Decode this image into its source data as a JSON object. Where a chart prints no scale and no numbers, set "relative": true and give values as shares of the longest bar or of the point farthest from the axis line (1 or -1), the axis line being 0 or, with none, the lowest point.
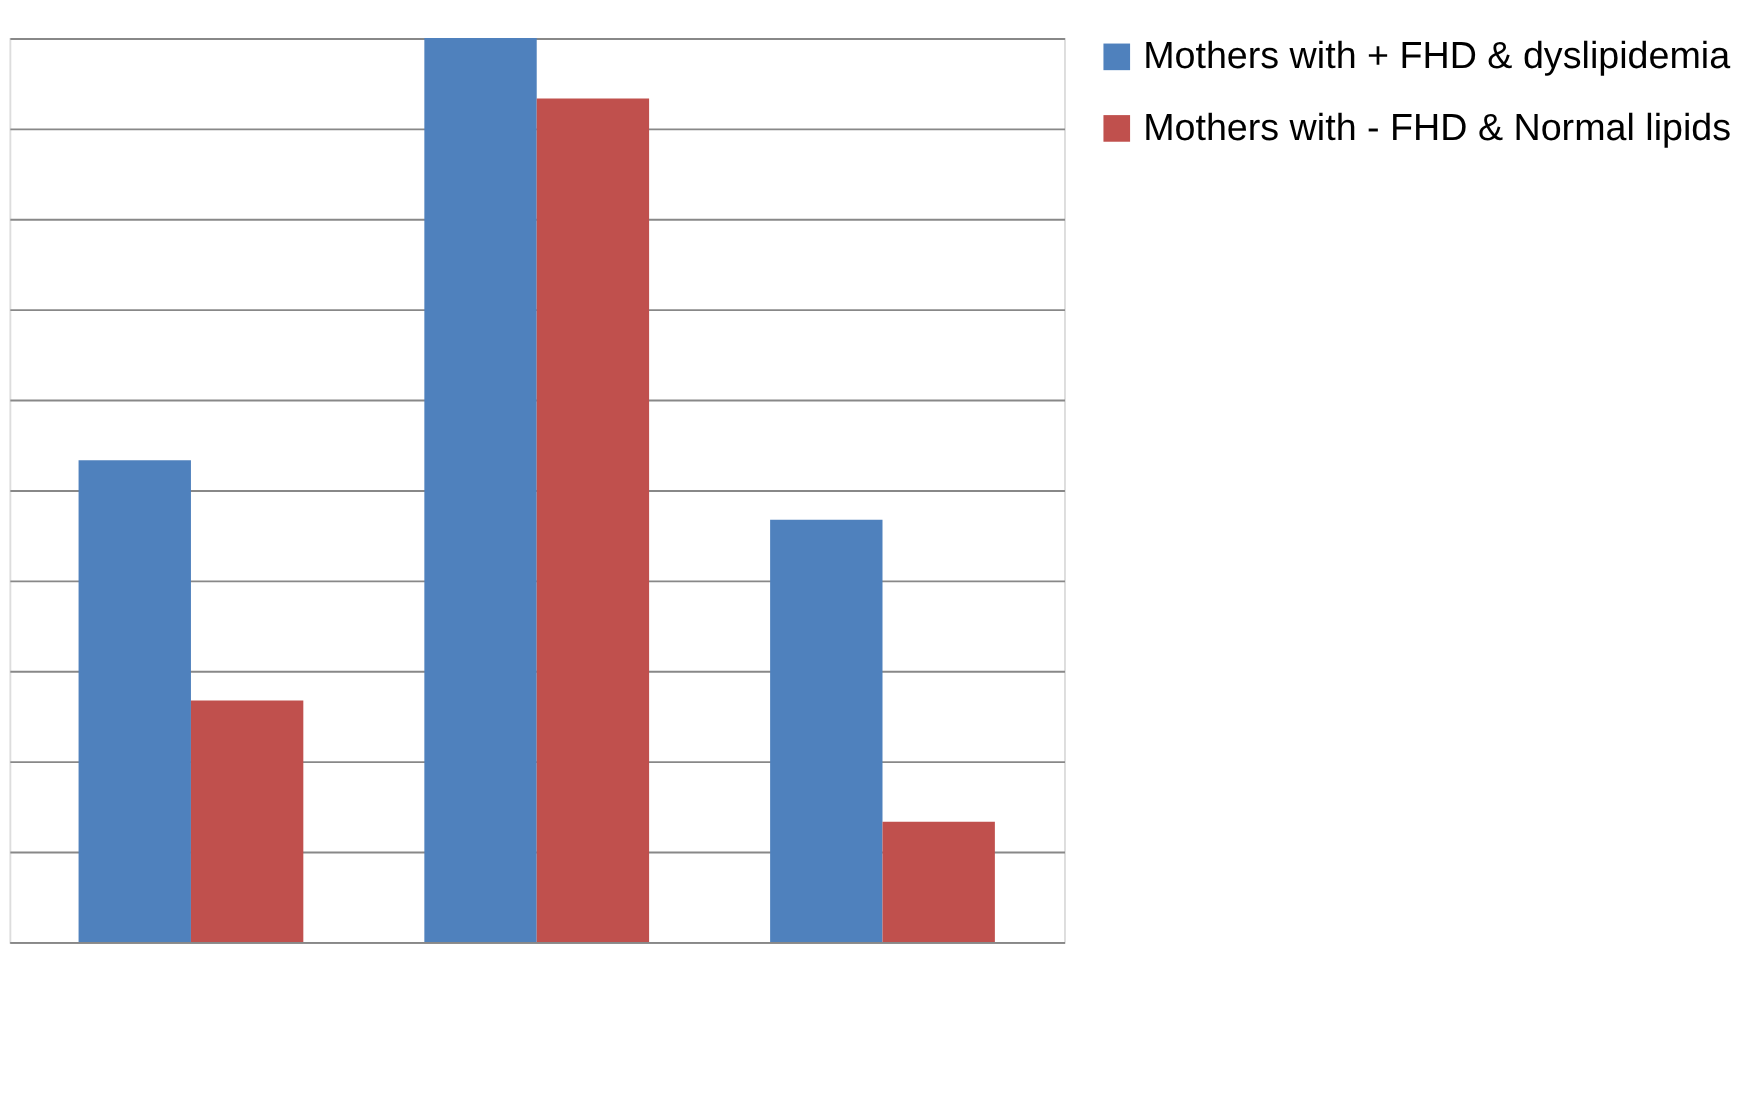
{
  "chart_data": {
    "type": "bar",
    "relative": true,
    "categories": [
      null,
      null,
      null
    ],
    "series": [
      {
        "name": "Mothers with + FHD & dyslipidemia",
        "color": "#4f81bd",
        "values": [
          0.533,
          1,
          0.467
        ]
      },
      {
        "name": "Mothers with - FHD & Normal lipids",
        "color": "#c0504d",
        "values": [
          0.267,
          0.933,
          0.133
        ]
      }
    ],
    "grid": "y",
    "legend": "right",
    "tick_labels": false
  }
}
